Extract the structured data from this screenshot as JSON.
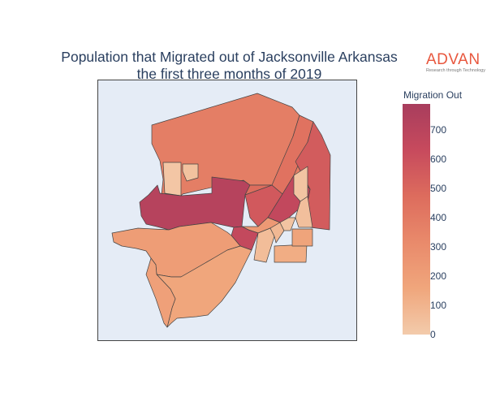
{
  "title": {
    "line1": "Population that Migrated out of Jacksonville Arkansas",
    "line2": "the first three months of 2019"
  },
  "logo": {
    "text": "ADVAN",
    "tagline": "Research through Technology"
  },
  "colors": {
    "map_background": "#e5ecf6",
    "border": "#444444",
    "colorscale": [
      "#f3cbab",
      "#f0a67c",
      "#e98a6b",
      "#dd6c5d",
      "#c74a5d",
      "#a83d5d"
    ]
  },
  "colorbar": {
    "title": "Migration Out",
    "min": 0,
    "max": 790,
    "ticks": [
      "0",
      "100",
      "200",
      "300",
      "400",
      "500",
      "600",
      "700"
    ]
  },
  "chart_data": {
    "type": "choropleth",
    "value_label": "Migration Out",
    "regions": [
      {
        "id": "north-large",
        "value": 380
      },
      {
        "id": "northeast-strip",
        "value": 440
      },
      {
        "id": "east-block",
        "value": 550
      },
      {
        "id": "northwest-small-1",
        "value": 20
      },
      {
        "id": "northwest-small-2",
        "value": 40
      },
      {
        "id": "west-central",
        "value": 720
      },
      {
        "id": "center-1",
        "value": 470
      },
      {
        "id": "center-2",
        "value": 560
      },
      {
        "id": "center-3",
        "value": 660
      },
      {
        "id": "east-small",
        "value": 30
      },
      {
        "id": "southeast-small",
        "value": 50
      },
      {
        "id": "center-south-1",
        "value": 230
      },
      {
        "id": "center-south-2",
        "value": 650
      },
      {
        "id": "central-small-1",
        "value": 60
      },
      {
        "id": "central-small-2",
        "value": 80
      },
      {
        "id": "central-small-3",
        "value": 30
      },
      {
        "id": "southeast-block-1",
        "value": 130
      },
      {
        "id": "southeast-block-2",
        "value": 170
      },
      {
        "id": "southwest-large",
        "value": 210
      },
      {
        "id": "south-large",
        "value": 160
      },
      {
        "id": "southwest-strip",
        "value": 190
      }
    ]
  }
}
